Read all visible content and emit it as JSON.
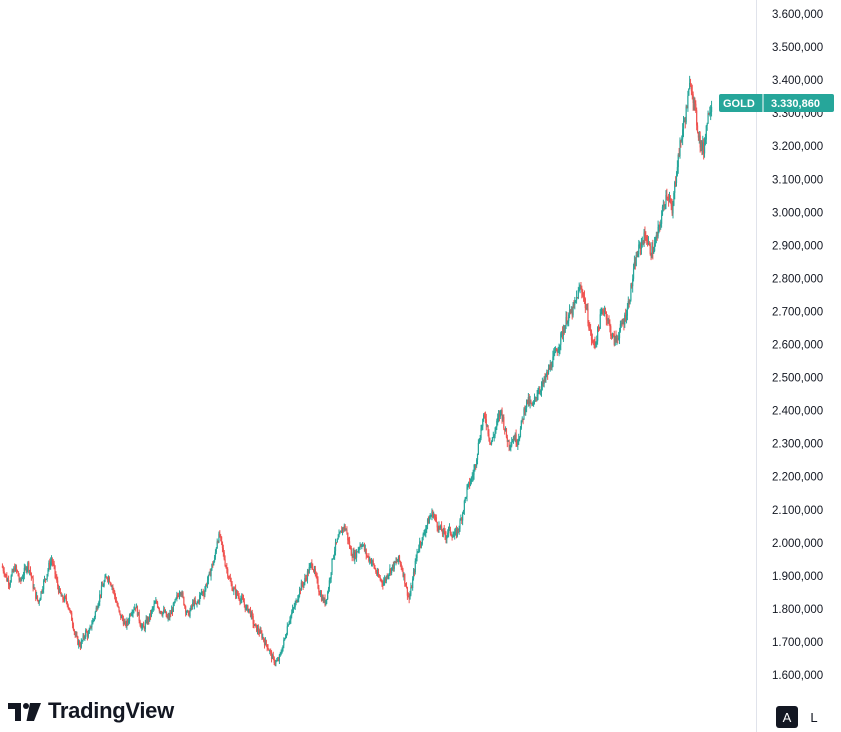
{
  "symbol": "GOLD",
  "last_price_label": "3.330,860",
  "logo_text": "TradingView",
  "scale_buttons": {
    "auto": "A",
    "log": "L"
  },
  "colors": {
    "up": "#26a69a",
    "down": "#ef5350",
    "badge": "#26a69a"
  },
  "chart_data": {
    "type": "line",
    "title": "",
    "xlabel": "",
    "ylabel": "",
    "style": "candlestick",
    "ylim": [
      1560000,
      3630000
    ],
    "y_ticks": [
      1600000,
      1700000,
      1800000,
      1900000,
      2000000,
      2100000,
      2200000,
      2300000,
      2400000,
      2500000,
      2600000,
      2700000,
      2800000,
      2900000,
      3000000,
      3100000,
      3200000,
      3300000,
      3400000,
      3500000,
      3600000
    ],
    "y_tick_labels": [
      "1.600,000",
      "1.700,000",
      "1.800,000",
      "1.900,000",
      "2.000,000",
      "2.100,000",
      "2.200,000",
      "2.300,000",
      "2.400,000",
      "2.500,000",
      "2.600,000",
      "2.700,000",
      "2.800,000",
      "2.900,000",
      "3.000,000",
      "3.100,000",
      "3.200,000",
      "3.300,000",
      "3.400,000",
      "3.500,000",
      "3.600,000"
    ],
    "grid": false,
    "last_value": 3330860,
    "series": [
      {
        "values": [
          1930000,
          1915000,
          1890000,
          1880000,
          1905000,
          1925000,
          1910000,
          1880000,
          1900000,
          1920000,
          1935000,
          1910000,
          1870000,
          1840000,
          1820000,
          1850000,
          1880000,
          1900000,
          1930000,
          1950000,
          1920000,
          1880000,
          1850000,
          1830000,
          1830000,
          1820000,
          1790000,
          1760000,
          1720000,
          1700000,
          1690000,
          1710000,
          1730000,
          1720000,
          1750000,
          1770000,
          1800000,
          1830000,
          1860000,
          1880000,
          1900000,
          1890000,
          1870000,
          1840000,
          1810000,
          1780000,
          1770000,
          1750000,
          1760000,
          1790000,
          1800000,
          1810000,
          1780000,
          1750000,
          1740000,
          1760000,
          1770000,
          1790000,
          1810000,
          1820000,
          1800000,
          1790000,
          1790000,
          1770000,
          1780000,
          1800000,
          1820000,
          1840000,
          1860000,
          1830000,
          1800000,
          1780000,
          1800000,
          1820000,
          1810000,
          1830000,
          1850000,
          1850000,
          1880000,
          1900000,
          1930000,
          1950000,
          2010000,
          2020000,
          1980000,
          1940000,
          1910000,
          1880000,
          1860000,
          1850000,
          1840000,
          1830000,
          1820000,
          1800000,
          1800000,
          1780000,
          1750000,
          1740000,
          1730000,
          1720000,
          1700000,
          1690000,
          1670000,
          1650000,
          1640000,
          1640000,
          1660000,
          1690000,
          1720000,
          1760000,
          1780000,
          1800000,
          1820000,
          1850000,
          1870000,
          1880000,
          1900000,
          1920000,
          1940000,
          1910000,
          1880000,
          1850000,
          1830000,
          1820000,
          1850000,
          1900000,
          1960000,
          1990000,
          2010000,
          2030000,
          2050000,
          2040000,
          2000000,
          1970000,
          1960000,
          1970000,
          1990000,
          2000000,
          1980000,
          1960000,
          1950000,
          1940000,
          1920000,
          1900000,
          1890000,
          1880000,
          1890000,
          1910000,
          1920000,
          1930000,
          1940000,
          1950000,
          1930000,
          1900000,
          1860000,
          1830000,
          1870000,
          1920000,
          1970000,
          2000000,
          2010000,
          2040000,
          2060000,
          2080000,
          2090000,
          2070000,
          2050000,
          2040000,
          2030000,
          2020000,
          2040000,
          2030000,
          2020000,
          2030000,
          2050000,
          2080000,
          2120000,
          2160000,
          2180000,
          2200000,
          2230000,
          2280000,
          2330000,
          2370000,
          2380000,
          2340000,
          2300000,
          2320000,
          2350000,
          2380000,
          2400000,
          2360000,
          2320000,
          2300000,
          2310000,
          2320000,
          2310000,
          2330000,
          2370000,
          2410000,
          2430000,
          2420000,
          2410000,
          2440000,
          2460000,
          2470000,
          2480000,
          2500000,
          2520000,
          2540000,
          2560000,
          2580000,
          2600000,
          2630000,
          2650000,
          2680000,
          2690000,
          2700000,
          2720000,
          2750000,
          2770000,
          2760000,
          2720000,
          2680000,
          2630000,
          2600000,
          2610000,
          2650000,
          2690000,
          2710000,
          2690000,
          2660000,
          2630000,
          2610000,
          2620000,
          2640000,
          2660000,
          2680000,
          2710000,
          2750000,
          2800000,
          2850000,
          2880000,
          2900000,
          2920000,
          2930000,
          2900000,
          2880000,
          2890000,
          2920000,
          2950000,
          2990000,
          3030000,
          3060000,
          3040000,
          2990000,
          3080000,
          3150000,
          3200000,
          3250000,
          3290000,
          3340000,
          3400000,
          3350000,
          3290000,
          3240000,
          3200000,
          3190000,
          3260000,
          3310000,
          3330000
        ]
      }
    ]
  }
}
